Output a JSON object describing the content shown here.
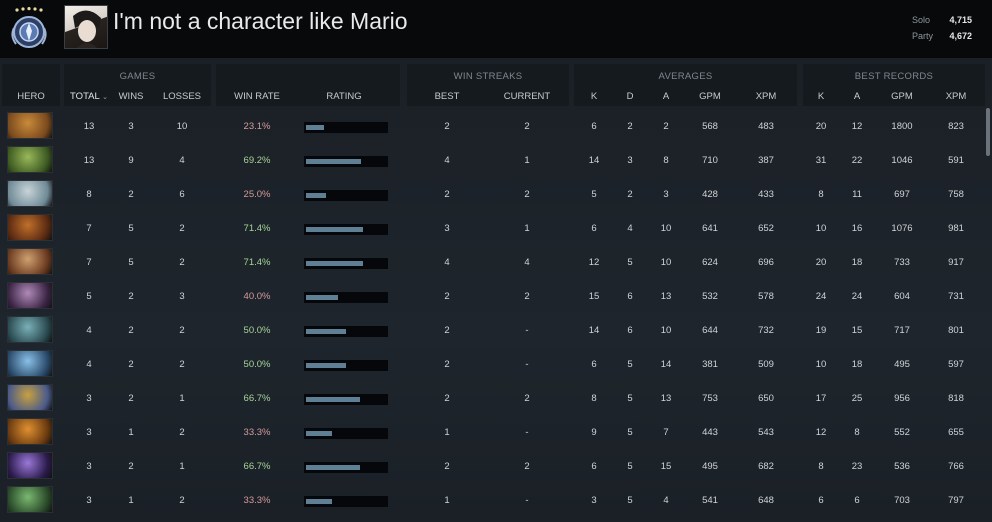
{
  "player": {
    "name": "I'm not a character like Mario"
  },
  "mmr": {
    "solo_label": "Solo",
    "solo_value": "4,715",
    "party_label": "Party",
    "party_value": "4,672"
  },
  "groups": {
    "games": "GAMES",
    "win_streaks": "WIN STREAKS",
    "averages": "AVERAGES",
    "best_records": "BEST RECORDS"
  },
  "columns": {
    "hero": "HERO",
    "total": "TOTAL",
    "wins": "WINS",
    "losses": "LOSSES",
    "win_rate": "WIN RATE",
    "rating": "RATING",
    "best": "BEST",
    "current": "CURRENT",
    "k": "K",
    "d": "D",
    "a": "A",
    "gpm": "GPM",
    "xpm": "XPM",
    "best_k": "K",
    "best_a": "A",
    "best_gpm": "GPM",
    "best_xpm": "XPM"
  },
  "rows": [
    {
      "total": "13",
      "wins": "3",
      "losses": "10",
      "win_rate": "23.1%",
      "rating": 0.23,
      "best": "2",
      "current": "2",
      "k": "6",
      "d": "2",
      "a": "2",
      "gpm": "568",
      "xpm": "483",
      "best_k": "20",
      "best_a": "12",
      "best_gpm": "1800",
      "best_xpm": "823",
      "hero_colors": [
        "#c98a3a",
        "#7a4a1e"
      ]
    },
    {
      "total": "13",
      "wins": "9",
      "losses": "4",
      "win_rate": "69.2%",
      "rating": 0.69,
      "best": "4",
      "current": "1",
      "k": "14",
      "d": "3",
      "a": "8",
      "gpm": "710",
      "xpm": "387",
      "best_k": "31",
      "best_a": "22",
      "best_gpm": "1046",
      "best_xpm": "591",
      "hero_colors": [
        "#9ab85a",
        "#3d5a22"
      ]
    },
    {
      "total": "8",
      "wins": "2",
      "losses": "6",
      "win_rate": "25.0%",
      "rating": 0.25,
      "best": "2",
      "current": "2",
      "k": "5",
      "d": "2",
      "a": "3",
      "gpm": "428",
      "xpm": "433",
      "best_k": "8",
      "best_a": "11",
      "best_gpm": "697",
      "best_xpm": "758",
      "hero_colors": [
        "#c8d4d8",
        "#6f8a96"
      ]
    },
    {
      "total": "7",
      "wins": "5",
      "losses": "2",
      "win_rate": "71.4%",
      "rating": 0.71,
      "best": "3",
      "current": "1",
      "k": "6",
      "d": "4",
      "a": "10",
      "gpm": "641",
      "xpm": "652",
      "best_k": "10",
      "best_a": "16",
      "best_gpm": "1076",
      "best_xpm": "981",
      "hero_colors": [
        "#c0702a",
        "#5a2a12"
      ]
    },
    {
      "total": "7",
      "wins": "5",
      "losses": "2",
      "win_rate": "71.4%",
      "rating": 0.71,
      "best": "4",
      "current": "4",
      "k": "12",
      "d": "5",
      "a": "10",
      "gpm": "624",
      "xpm": "696",
      "best_k": "20",
      "best_a": "18",
      "best_gpm": "733",
      "best_xpm": "917",
      "hero_colors": [
        "#d0a070",
        "#6a3a20"
      ]
    },
    {
      "total": "5",
      "wins": "2",
      "losses": "3",
      "win_rate": "40.0%",
      "rating": 0.4,
      "best": "2",
      "current": "2",
      "k": "15",
      "d": "6",
      "a": "13",
      "gpm": "532",
      "xpm": "578",
      "best_k": "24",
      "best_a": "24",
      "best_gpm": "604",
      "best_xpm": "731",
      "hero_colors": [
        "#b08ab8",
        "#3a2444"
      ]
    },
    {
      "total": "4",
      "wins": "2",
      "losses": "2",
      "win_rate": "50.0%",
      "rating": 0.5,
      "best": "2",
      "current": "-",
      "k": "14",
      "d": "6",
      "a": "10",
      "gpm": "644",
      "xpm": "732",
      "best_k": "19",
      "best_a": "15",
      "best_gpm": "717",
      "best_xpm": "801",
      "hero_colors": [
        "#7ab0b8",
        "#2a4a50"
      ]
    },
    {
      "total": "4",
      "wins": "2",
      "losses": "2",
      "win_rate": "50.0%",
      "rating": 0.5,
      "best": "2",
      "current": "-",
      "k": "6",
      "d": "5",
      "a": "14",
      "gpm": "381",
      "xpm": "509",
      "best_k": "10",
      "best_a": "18",
      "best_gpm": "495",
      "best_xpm": "597",
      "hero_colors": [
        "#8ac0e8",
        "#2a4a6a"
      ]
    },
    {
      "total": "3",
      "wins": "2",
      "losses": "1",
      "win_rate": "66.7%",
      "rating": 0.67,
      "best": "2",
      "current": "2",
      "k": "8",
      "d": "5",
      "a": "13",
      "gpm": "753",
      "xpm": "650",
      "best_k": "17",
      "best_a": "25",
      "best_gpm": "956",
      "best_xpm": "818",
      "hero_colors": [
        "#c8a040",
        "#4a5a8a"
      ]
    },
    {
      "total": "3",
      "wins": "1",
      "losses": "2",
      "win_rate": "33.3%",
      "rating": 0.33,
      "best": "1",
      "current": "-",
      "k": "9",
      "d": "5",
      "a": "7",
      "gpm": "443",
      "xpm": "543",
      "best_k": "12",
      "best_a": "8",
      "best_gpm": "552",
      "best_xpm": "655",
      "hero_colors": [
        "#e09030",
        "#6a3a10"
      ]
    },
    {
      "total": "3",
      "wins": "2",
      "losses": "1",
      "win_rate": "66.7%",
      "rating": 0.67,
      "best": "2",
      "current": "2",
      "k": "6",
      "d": "5",
      "a": "15",
      "gpm": "495",
      "xpm": "682",
      "best_k": "8",
      "best_a": "23",
      "best_gpm": "536",
      "best_xpm": "766",
      "hero_colors": [
        "#9a78d8",
        "#2a1a4a"
      ]
    },
    {
      "total": "3",
      "wins": "1",
      "losses": "2",
      "win_rate": "33.3%",
      "rating": 0.33,
      "best": "1",
      "current": "-",
      "k": "3",
      "d": "5",
      "a": "4",
      "gpm": "541",
      "xpm": "648",
      "best_k": "6",
      "best_a": "6",
      "best_gpm": "703",
      "best_xpm": "797",
      "hero_colors": [
        "#7ab870",
        "#2a4a2a"
      ]
    }
  ]
}
